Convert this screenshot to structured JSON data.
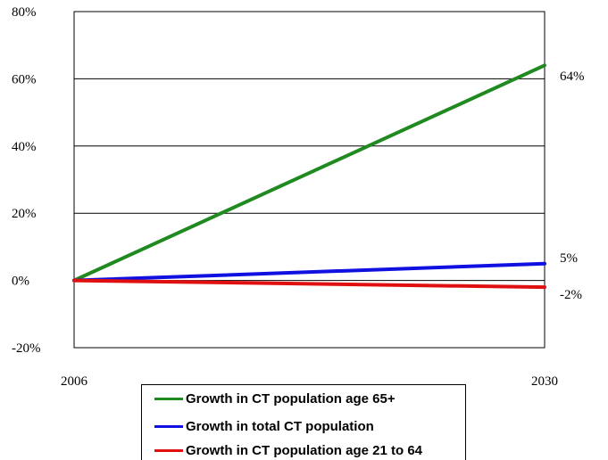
{
  "chart_data": {
    "type": "line",
    "x": [
      2006,
      2030
    ],
    "x_tick_labels": [
      "2006",
      "2030"
    ],
    "ylim": [
      -20,
      80
    ],
    "y_ticks": [
      -20,
      0,
      20,
      40,
      60,
      80
    ],
    "y_tick_labels": [
      "-20%",
      "0%",
      "20%",
      "40%",
      "60%",
      "80%"
    ],
    "grid": "horizontal",
    "legend_position": "bottom",
    "series": [
      {
        "name": "Growth in CT population age 65+",
        "values": [
          0,
          64
        ],
        "end_label": "64%",
        "color": "#1f8a1f"
      },
      {
        "name": "Growth in total CT population",
        "values": [
          0,
          5
        ],
        "end_label": "5%",
        "color": "#1010e0"
      },
      {
        "name": "Growth in CT population age 21 to 64",
        "values": [
          0,
          -2
        ],
        "end_label": "-2%",
        "color": "#e01010"
      }
    ]
  }
}
